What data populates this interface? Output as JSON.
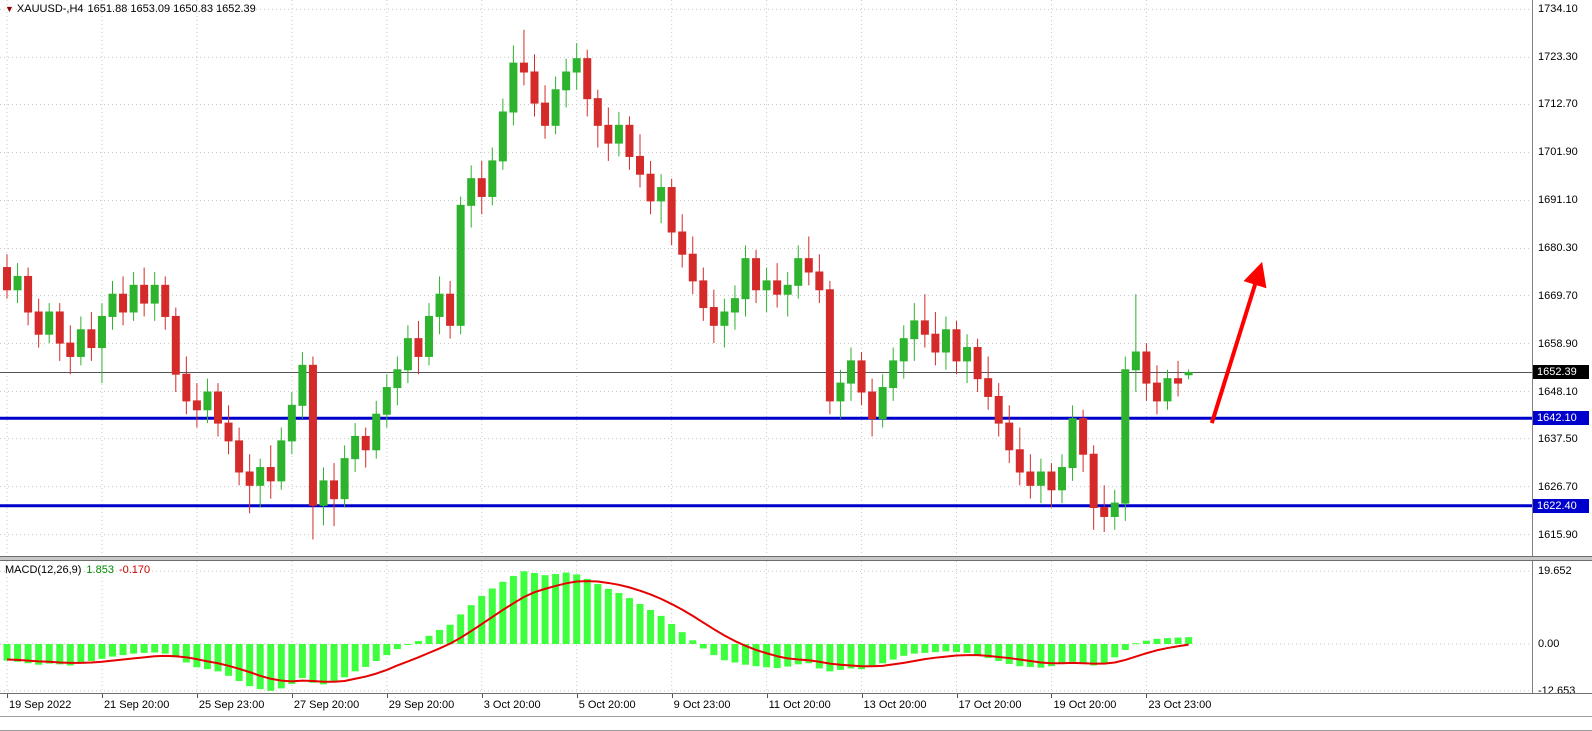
{
  "header": {
    "symbol": "XAUUSD-,H4",
    "ohlc_text": "1651.88 1653.09 1650.83 1652.39"
  },
  "price_scale": {
    "labels": [
      "1734.10",
      "1723.30",
      "1712.70",
      "1701.90",
      "1691.10",
      "1680.30",
      "1669.70",
      "1658.90",
      "1648.10",
      "1637.50",
      "1626.70",
      "1615.90"
    ],
    "current_tag": "1652.39",
    "level_tags": [
      "1642.10",
      "1622.40"
    ]
  },
  "time_scale": {
    "labels": [
      "19 Sep 2022",
      "21 Sep 20:00",
      "25 Sep 23:00",
      "27 Sep 20:00",
      "29 Sep 20:00",
      "3 Oct 20:00",
      "5 Oct 20:00",
      "9 Oct 23:00",
      "11 Oct 20:00",
      "13 Oct 20:00",
      "17 Oct 20:00",
      "19 Oct 20:00",
      "23 Oct 23:00"
    ]
  },
  "macd_panel": {
    "name": "MACD(12,26,9)",
    "main_value": "1.853",
    "signal_value": "-0.170",
    "scale_labels": [
      "19.652",
      "0.00",
      "-12.653"
    ]
  },
  "colors": {
    "background": "#ffffff",
    "grid": "#c9c9c9",
    "bull": "#2db32d",
    "bear": "#d42a2a",
    "macd_hist": "#3dff3d",
    "macd_signal": "#e60000",
    "level_line": "#0000cc",
    "current_line": "#555555",
    "arrow": "#ff0000",
    "tag_current_bg": "#000000",
    "tag_level_bg": "#0000cc"
  },
  "chart_data": {
    "type": "candlestick",
    "title": "XAUUSD-,H4",
    "current_bar": {
      "open": 1651.88,
      "high": 1653.09,
      "low": 1650.83,
      "close": 1652.39
    },
    "current_price": 1652.39,
    "y_ticks": [
      1734.1,
      1723.3,
      1712.7,
      1701.9,
      1691.1,
      1680.3,
      1669.7,
      1658.9,
      1648.1,
      1637.5,
      1626.7,
      1615.9
    ],
    "x_tick_labels": [
      "19 Sep 2022",
      "21 Sep 20:00",
      "25 Sep 23:00",
      "27 Sep 20:00",
      "29 Sep 20:00",
      "3 Oct 20:00",
      "5 Oct 20:00",
      "9 Oct 23:00",
      "11 Oct 20:00",
      "13 Oct 20:00",
      "17 Oct 20:00",
      "19 Oct 20:00",
      "23 Oct 23:00"
    ],
    "levels": [
      1642.1,
      1622.4
    ],
    "candles": [
      [
        1676,
        1679,
        1669,
        1671
      ],
      [
        1671,
        1677,
        1668,
        1674
      ],
      [
        1674,
        1676,
        1663,
        1666
      ],
      [
        1666,
        1669,
        1658,
        1661
      ],
      [
        1661,
        1668,
        1659,
        1666
      ],
      [
        1666,
        1668,
        1655,
        1659
      ],
      [
        1659,
        1663,
        1652,
        1656
      ],
      [
        1656,
        1665,
        1654,
        1662
      ],
      [
        1662,
        1666,
        1655,
        1658
      ],
      [
        1658,
        1668,
        1650,
        1665
      ],
      [
        1665,
        1673,
        1662,
        1670
      ],
      [
        1670,
        1674,
        1663,
        1666
      ],
      [
        1666,
        1675,
        1664,
        1672
      ],
      [
        1672,
        1676,
        1665,
        1668
      ],
      [
        1668,
        1675,
        1664,
        1672
      ],
      [
        1672,
        1674,
        1662,
        1665
      ],
      [
        1665,
        1667,
        1648,
        1652
      ],
      [
        1652,
        1656,
        1643,
        1646
      ],
      [
        1646,
        1650,
        1640,
        1644
      ],
      [
        1644,
        1651,
        1641,
        1648
      ],
      [
        1648,
        1650,
        1638,
        1641
      ],
      [
        1641,
        1645,
        1634,
        1637
      ],
      [
        1637,
        1640,
        1627,
        1630
      ],
      [
        1630,
        1634,
        1620.7,
        1627
      ],
      [
        1627,
        1633,
        1622,
        1631
      ],
      [
        1631,
        1636,
        1624,
        1628
      ],
      [
        1628,
        1640,
        1626,
        1637
      ],
      [
        1637,
        1648,
        1634,
        1645
      ],
      [
        1645,
        1657,
        1642,
        1654
      ],
      [
        1654,
        1656,
        1614.8,
        1622.5
      ],
      [
        1622.5,
        1631,
        1618,
        1628
      ],
      [
        1628,
        1632,
        1617.8,
        1624
      ],
      [
        1624,
        1636,
        1622,
        1633
      ],
      [
        1633,
        1641,
        1630,
        1638
      ],
      [
        1638,
        1640,
        1631,
        1635
      ],
      [
        1635,
        1646,
        1633,
        1643
      ],
      [
        1643,
        1652,
        1640,
        1649
      ],
      [
        1649,
        1656,
        1645,
        1653
      ],
      [
        1653,
        1663,
        1650,
        1660
      ],
      [
        1660,
        1664,
        1652,
        1656
      ],
      [
        1656,
        1668,
        1654,
        1665
      ],
      [
        1665,
        1674,
        1661,
        1670
      ],
      [
        1670,
        1673,
        1660,
        1663
      ],
      [
        1663,
        1692,
        1661,
        1690
      ],
      [
        1690,
        1699,
        1685,
        1696
      ],
      [
        1696,
        1700,
        1688,
        1692
      ],
      [
        1692,
        1703,
        1690,
        1700
      ],
      [
        1700,
        1714,
        1698,
        1711
      ],
      [
        1711,
        1726,
        1708,
        1722
      ],
      [
        1722,
        1729.5,
        1717,
        1720
      ],
      [
        1720,
        1724,
        1710,
        1713
      ],
      [
        1713,
        1717,
        1705,
        1708
      ],
      [
        1708,
        1719,
        1706,
        1716
      ],
      [
        1716,
        1723,
        1712,
        1720
      ],
      [
        1720,
        1726.5,
        1716,
        1723
      ],
      [
        1723,
        1725,
        1710,
        1714
      ],
      [
        1714,
        1716,
        1703,
        1708
      ],
      [
        1708,
        1712,
        1700,
        1704
      ],
      [
        1704,
        1711,
        1701,
        1708
      ],
      [
        1708,
        1710,
        1698,
        1701
      ],
      [
        1701,
        1706,
        1694,
        1697
      ],
      [
        1697,
        1700,
        1688,
        1691
      ],
      [
        1691,
        1697,
        1686,
        1694
      ],
      [
        1694,
        1696,
        1681,
        1684
      ],
      [
        1684,
        1688,
        1676,
        1679
      ],
      [
        1679,
        1683,
        1670,
        1673
      ],
      [
        1673,
        1676,
        1664,
        1667
      ],
      [
        1667,
        1671,
        1659,
        1663
      ],
      [
        1663,
        1669,
        1658,
        1666
      ],
      [
        1666,
        1672,
        1662,
        1669
      ],
      [
        1669,
        1681,
        1665,
        1678
      ],
      [
        1678,
        1680,
        1668,
        1671
      ],
      [
        1671,
        1676,
        1666,
        1673
      ],
      [
        1673,
        1677,
        1667,
        1670
      ],
      [
        1670,
        1675,
        1665,
        1672
      ],
      [
        1672,
        1681,
        1669,
        1678
      ],
      [
        1678,
        1683,
        1672,
        1675
      ],
      [
        1675,
        1679,
        1668,
        1671
      ],
      [
        1671,
        1673,
        1643,
        1646
      ],
      [
        1646,
        1653,
        1642,
        1650
      ],
      [
        1650,
        1658,
        1646,
        1655
      ],
      [
        1655,
        1657,
        1645,
        1648
      ],
      [
        1648,
        1651,
        1638,
        1642
      ],
      [
        1642,
        1652,
        1640,
        1649
      ],
      [
        1649,
        1658,
        1646,
        1655
      ],
      [
        1655,
        1663,
        1651,
        1660
      ],
      [
        1660,
        1668,
        1655,
        1664
      ],
      [
        1664,
        1670,
        1658,
        1661
      ],
      [
        1661,
        1666,
        1654,
        1657
      ],
      [
        1657,
        1665,
        1653,
        1662
      ],
      [
        1662,
        1664,
        1652,
        1655
      ],
      [
        1655,
        1661,
        1650,
        1658
      ],
      [
        1658,
        1660,
        1648,
        1651
      ],
      [
        1651,
        1656,
        1644,
        1647
      ],
      [
        1647,
        1650,
        1638,
        1641
      ],
      [
        1641,
        1645,
        1632,
        1635
      ],
      [
        1635,
        1640,
        1627,
        1630
      ],
      [
        1630,
        1634,
        1624,
        1627
      ],
      [
        1627,
        1633,
        1623,
        1630
      ],
      [
        1630,
        1632,
        1622,
        1626
      ],
      [
        1626,
        1634,
        1623,
        1631
      ],
      [
        1631,
        1645,
        1628,
        1642
      ],
      [
        1642,
        1644,
        1630,
        1634
      ],
      [
        1634,
        1636,
        1617,
        1622
      ],
      [
        1622,
        1627,
        1616.5,
        1620
      ],
      [
        1620,
        1626,
        1617,
        1623
      ],
      [
        1623,
        1656,
        1619,
        1653
      ],
      [
        1653,
        1670,
        1648,
        1657
      ],
      [
        1657,
        1659,
        1646,
        1650
      ],
      [
        1650,
        1654,
        1643,
        1646
      ],
      [
        1646,
        1653,
        1644,
        1651
      ],
      [
        1651,
        1655,
        1647,
        1650
      ],
      [
        1651.88,
        1653.09,
        1650.83,
        1652.39
      ]
    ],
    "arrow": {
      "from_bar": 114.2,
      "from_price": 1641,
      "to_bar": 118.8,
      "to_price": 1676
    },
    "macd": {
      "label": "MACD(12,26,9)",
      "main": 1.853,
      "signal": -0.17,
      "y_ticks": [
        19.652,
        0,
        -12.653
      ],
      "histogram": [
        -4.5,
        -4.8,
        -5.2,
        -5.6,
        -5.3,
        -5.5,
        -5.8,
        -5.2,
        -4.6,
        -4.0,
        -3.4,
        -3.0,
        -2.6,
        -2.4,
        -2.3,
        -2.6,
        -3.6,
        -5.0,
        -6.3,
        -6.8,
        -7.4,
        -8.6,
        -10.0,
        -11.4,
        -12.2,
        -12.65,
        -12.0,
        -10.8,
        -9.2,
        -10.5,
        -10.9,
        -10.2,
        -9.0,
        -7.4,
        -6.2,
        -4.6,
        -3.0,
        -1.4,
        -0.2,
        0.8,
        2.2,
        3.8,
        5.2,
        8.0,
        10.5,
        13.0,
        15.0,
        16.8,
        18.4,
        19.65,
        19.2,
        18.6,
        18.9,
        19.3,
        18.8,
        17.6,
        16.2,
        14.9,
        13.8,
        12.4,
        10.8,
        9.2,
        7.6,
        5.4,
        3.2,
        1.0,
        -1.2,
        -3.0,
        -4.4,
        -5.0,
        -5.6,
        -6.0,
        -6.3,
        -6.5,
        -6.1,
        -5.5,
        -5.2,
        -6.6,
        -7.4,
        -7.0,
        -6.6,
        -6.8,
        -6.2,
        -5.2,
        -4.2,
        -3.2,
        -2.6,
        -2.4,
        -2.2,
        -2.0,
        -2.2,
        -2.4,
        -3.0,
        -3.8,
        -4.6,
        -5.4,
        -6.0,
        -6.2,
        -6.4,
        -6.0,
        -5.2,
        -4.8,
        -5.4,
        -5.8,
        -5.4,
        -3.6,
        -1.6,
        0.2,
        0.9,
        1.4,
        1.6,
        1.75,
        1.853
      ],
      "signal_line": [
        -4.2,
        -4.3,
        -4.5,
        -4.7,
        -4.8,
        -5.0,
        -5.1,
        -5.1,
        -5.0,
        -4.8,
        -4.5,
        -4.2,
        -3.9,
        -3.6,
        -3.3,
        -3.2,
        -3.3,
        -3.6,
        -4.1,
        -4.7,
        -5.2,
        -5.9,
        -6.7,
        -7.6,
        -8.6,
        -9.4,
        -9.9,
        -10.1,
        -9.9,
        -10.0,
        -10.2,
        -10.2,
        -10.0,
        -9.4,
        -8.8,
        -8.0,
        -7.0,
        -5.8,
        -4.7,
        -3.6,
        -2.4,
        -1.2,
        0.1,
        1.7,
        3.5,
        5.4,
        7.3,
        9.2,
        11.0,
        12.7,
        14.0,
        14.9,
        15.7,
        16.4,
        16.9,
        17.0,
        16.9,
        16.5,
        16.0,
        15.3,
        14.4,
        13.4,
        12.2,
        10.8,
        9.3,
        7.6,
        5.8,
        4.0,
        2.3,
        0.8,
        -0.5,
        -1.6,
        -2.5,
        -3.3,
        -3.9,
        -4.2,
        -4.4,
        -4.8,
        -5.3,
        -5.6,
        -5.8,
        -6.0,
        -6.0,
        -5.9,
        -5.5,
        -5.1,
        -4.6,
        -4.1,
        -3.7,
        -3.4,
        -3.1,
        -3.0,
        -3.0,
        -3.2,
        -3.5,
        -3.8,
        -4.2,
        -4.6,
        -5.0,
        -5.2,
        -5.2,
        -5.1,
        -5.2,
        -5.3,
        -5.3,
        -5.0,
        -4.3,
        -3.4,
        -2.5,
        -1.7,
        -1.1,
        -0.6,
        -0.17
      ]
    }
  }
}
